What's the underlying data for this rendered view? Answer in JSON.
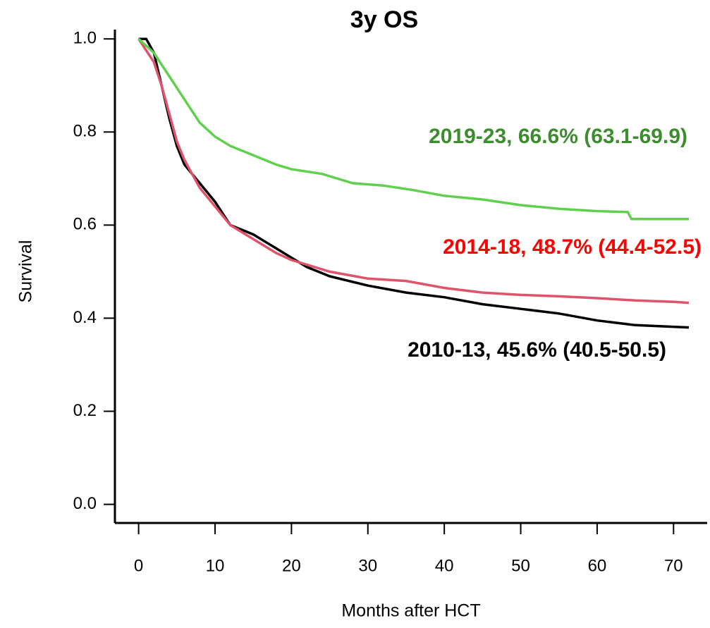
{
  "chart_data": {
    "type": "line",
    "title": "3y OS",
    "xlabel": "Months after HCT",
    "ylabel": "Survival",
    "xlim": [
      -3.1,
      74.4
    ],
    "ylim": [
      -0.04,
      1.02
    ],
    "xticks": [
      0,
      10,
      20,
      30,
      40,
      50,
      60,
      70
    ],
    "yticks": [
      {
        "value": 0,
        "label": "0.0"
      },
      0.2,
      0.4,
      0.6,
      0.8,
      {
        "value": 1,
        "label": "1.0"
      }
    ],
    "series": [
      {
        "name": "2010-13",
        "color": "#000000",
        "x": [
          0,
          1,
          2,
          3,
          4,
          5,
          6,
          8,
          10,
          12,
          15,
          18,
          20,
          22,
          25,
          30,
          35,
          40,
          45,
          50,
          55,
          60,
          65,
          72
        ],
        "values": [
          1.0,
          1.0,
          0.97,
          0.9,
          0.83,
          0.77,
          0.73,
          0.69,
          0.65,
          0.6,
          0.58,
          0.55,
          0.53,
          0.51,
          0.49,
          0.47,
          0.455,
          0.445,
          0.43,
          0.42,
          0.41,
          0.395,
          0.385,
          0.38
        ]
      },
      {
        "name": "2014-18",
        "color": "#df536b",
        "x": [
          0,
          2,
          3,
          4,
          5,
          6,
          8,
          10,
          12,
          15,
          18,
          20,
          25,
          30,
          35,
          40,
          45,
          50,
          55,
          60,
          65,
          70,
          72
        ],
        "values": [
          1.0,
          0.95,
          0.9,
          0.84,
          0.78,
          0.74,
          0.68,
          0.64,
          0.6,
          0.57,
          0.54,
          0.525,
          0.5,
          0.485,
          0.48,
          0.465,
          0.455,
          0.45,
          0.447,
          0.443,
          0.438,
          0.435,
          0.433
        ]
      },
      {
        "name": "2019-23",
        "color": "#61d04f",
        "x": [
          0,
          2,
          4,
          6,
          8,
          10,
          12,
          15,
          18,
          20,
          24,
          28,
          32,
          36,
          40,
          45,
          50,
          55,
          60,
          64,
          64.5,
          72
        ],
        "values": [
          1.0,
          0.97,
          0.92,
          0.87,
          0.82,
          0.79,
          0.77,
          0.75,
          0.73,
          0.72,
          0.71,
          0.69,
          0.685,
          0.675,
          0.663,
          0.655,
          0.643,
          0.635,
          0.63,
          0.628,
          0.613,
          0.613
        ]
      }
    ],
    "annotations": [
      {
        "text": "2019-23, 66.6% (63.1-69.9)",
        "color": "#3d8c2f"
      },
      {
        "text": "2014-18, 48.7% (44.4-52.5)",
        "color": "#ff0000"
      },
      {
        "text": "2010-13, 45.6% (40.5-50.5)",
        "color": "#000000"
      }
    ]
  }
}
